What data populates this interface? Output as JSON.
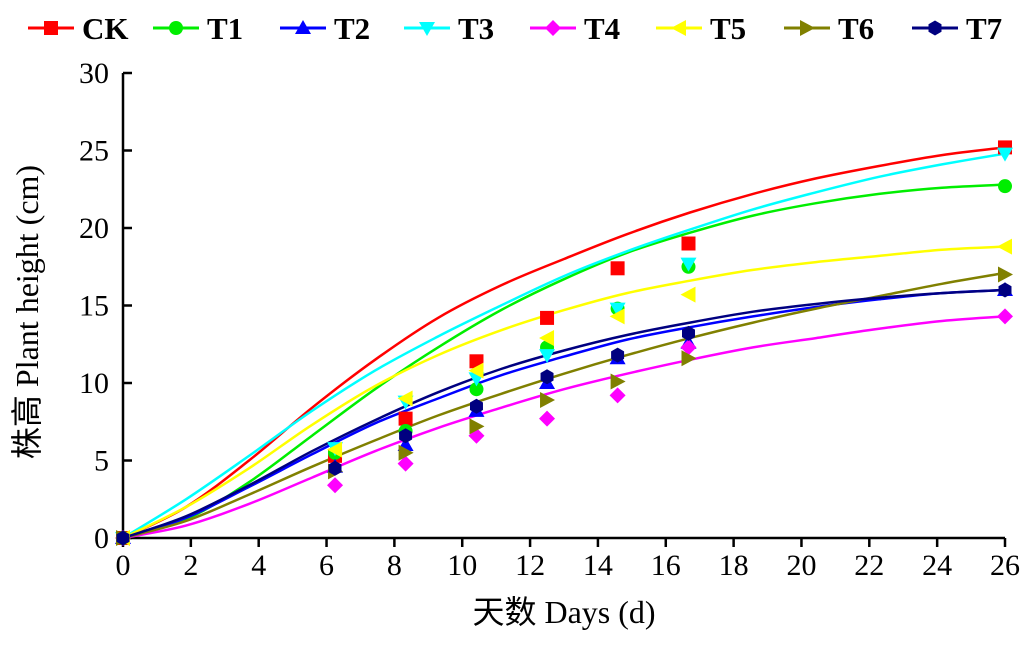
{
  "chart_data": {
    "type": "line",
    "xlabel": "天数 Days (d)",
    "ylabel": "株高 Plant height (cm)",
    "xlim": [
      0,
      26
    ],
    "ylim": [
      0,
      30
    ],
    "xticks": [
      0,
      2,
      4,
      6,
      8,
      10,
      12,
      14,
      16,
      18,
      20,
      22,
      24,
      26
    ],
    "yticks": [
      0,
      5,
      10,
      15,
      20,
      25,
      30
    ],
    "grid": false,
    "legend_position": "top",
    "x": [
      0,
      6.25,
      8.33,
      10.42,
      12.5,
      14.58,
      16.67,
      26
    ],
    "series": [
      {
        "name": "CK",
        "color": "#ff0000",
        "marker": "square",
        "values": [
          0,
          5.3,
          7.7,
          11.4,
          14.2,
          17.4,
          19.0,
          25.2
        ],
        "curve": [
          0,
          2.0,
          5.0,
          8.4,
          11.5,
          14.2,
          16.3,
          18.0,
          19.6,
          21.0,
          22.2,
          23.2,
          24.0,
          24.7,
          25.2
        ]
      },
      {
        "name": "T1",
        "color": "#00ee00",
        "marker": "circle",
        "values": [
          0,
          5.5,
          6.9,
          9.6,
          12.3,
          14.8,
          17.5,
          22.7
        ],
        "curve": [
          0,
          1.2,
          3.6,
          6.6,
          9.6,
          12.3,
          14.7,
          16.7,
          18.4,
          19.7,
          20.8,
          21.6,
          22.2,
          22.6,
          22.8
        ]
      },
      {
        "name": "T2",
        "color": "#0000ff",
        "marker": "triangle-up",
        "values": [
          0,
          4.6,
          6.0,
          8.2,
          10.0,
          11.6,
          12.6,
          16.0
        ],
        "curve": [
          0,
          1.3,
          3.3,
          5.4,
          7.4,
          9.0,
          10.5,
          11.7,
          12.8,
          13.6,
          14.3,
          14.9,
          15.4,
          15.8,
          16.0
        ]
      },
      {
        "name": "T3",
        "color": "#00ffff",
        "marker": "triangle-down",
        "values": [
          0,
          5.8,
          8.8,
          10.3,
          11.8,
          14.8,
          17.7,
          24.8
        ],
        "curve": [
          0,
          2.5,
          5.3,
          8.2,
          10.8,
          13.0,
          15.0,
          16.9,
          18.5,
          19.9,
          21.2,
          22.3,
          23.3,
          24.1,
          24.8
        ]
      },
      {
        "name": "T4",
        "color": "#ff00ff",
        "marker": "diamond",
        "values": [
          0,
          3.4,
          4.8,
          6.6,
          7.7,
          9.2,
          12.3,
          14.3
        ],
        "curve": [
          0,
          0.8,
          2.2,
          3.9,
          5.6,
          7.1,
          8.4,
          9.6,
          10.6,
          11.5,
          12.3,
          12.9,
          13.5,
          14.0,
          14.3
        ]
      },
      {
        "name": "T5",
        "color": "#ffff00",
        "marker": "triangle-left",
        "values": [
          0,
          5.7,
          9.0,
          10.8,
          12.9,
          14.3,
          15.7,
          18.8
        ],
        "curve": [
          0,
          2.0,
          4.5,
          7.3,
          9.8,
          11.8,
          13.4,
          14.7,
          15.8,
          16.6,
          17.3,
          17.8,
          18.2,
          18.6,
          18.8
        ]
      },
      {
        "name": "T6",
        "color": "#808000",
        "marker": "triangle-right",
        "values": [
          0,
          4.3,
          5.5,
          7.2,
          8.9,
          10.1,
          11.6,
          17.0
        ],
        "curve": [
          0,
          1.1,
          2.8,
          4.6,
          6.3,
          7.9,
          9.3,
          10.6,
          11.8,
          12.9,
          13.9,
          14.8,
          15.6,
          16.4,
          17.1
        ]
      },
      {
        "name": "T7",
        "color": "#000080",
        "marker": "hexagon",
        "values": [
          0,
          4.5,
          6.6,
          8.5,
          10.4,
          11.8,
          13.2,
          16.0
        ],
        "curve": [
          0,
          1.4,
          3.4,
          5.6,
          7.6,
          9.4,
          10.9,
          12.1,
          13.1,
          13.9,
          14.6,
          15.1,
          15.5,
          15.8,
          16.0
        ]
      }
    ]
  }
}
